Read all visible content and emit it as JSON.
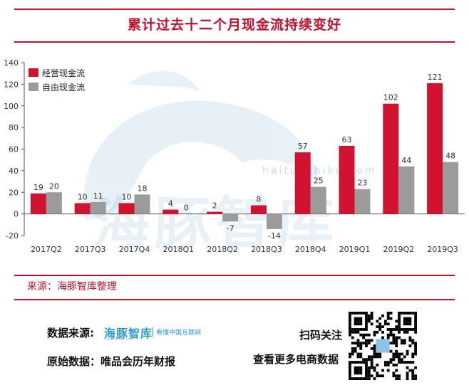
{
  "title": "累计过去十二个月现金流持续变好",
  "source": "来源：海豚智库整理",
  "watermark": {
    "text": "海豚智库",
    "url": "haitunzhiku.com"
  },
  "footer": {
    "data_source_label": "数据来源:",
    "brand_name": "海豚智库",
    "brand_slogan": "看懂中国互联网",
    "brand_url": "haitunzhiku.com",
    "raw_data_label": "原始数据：唯品会历年财报",
    "scan_label": "扫码关注",
    "more_label": "查看更多电商数据"
  },
  "colors": {
    "operating": "#d0122f",
    "free": "#9b9b9b",
    "accent": "#c8102e"
  },
  "icons": {
    "qr": "qr-code-icon",
    "dolphin": "dolphin-watermark-icon"
  },
  "chart_data": {
    "type": "bar",
    "title": "累计过去十二个月现金流持续变好",
    "categories": [
      "2017Q2",
      "2017Q3",
      "2017Q4",
      "2018Q1",
      "2018Q2",
      "2018Q3",
      "2018Q4",
      "2019Q1",
      "2019Q2",
      "2019Q3"
    ],
    "series": [
      {
        "name": "经营现金流",
        "values": [
          19,
          10,
          10,
          4,
          2,
          8,
          57,
          63,
          102,
          121
        ]
      },
      {
        "name": "自由现金流",
        "values": [
          20,
          11,
          18,
          0,
          -7,
          -14,
          25,
          23,
          44,
          48
        ]
      }
    ],
    "ylim": [
      -20,
      140
    ],
    "yticks": [
      -20,
      0,
      20,
      40,
      60,
      80,
      100,
      120,
      140
    ],
    "legend_position": "top-left",
    "grid": false
  }
}
